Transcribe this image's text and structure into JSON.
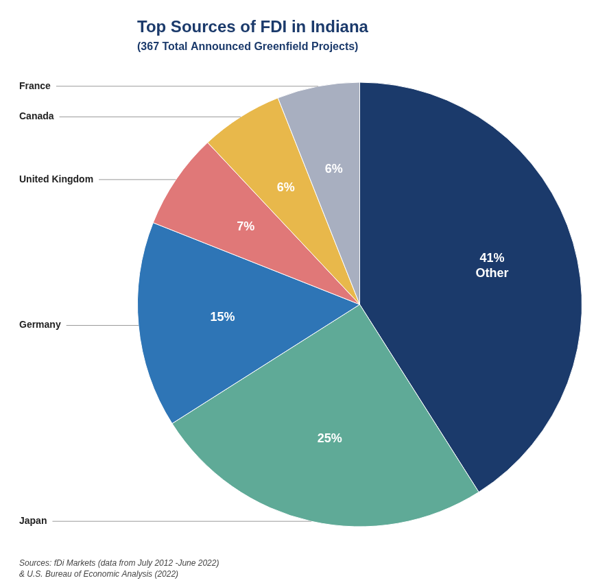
{
  "chart_data": {
    "type": "pie",
    "title": "Top Sources of FDI in Indiana",
    "subtitle": "(367 Total Announced Greenfield Projects)",
    "annotations": [
      "Sources: fDi Markets (data from July 2012 -June 2022)\n& U.S. Bureau of Economic Analysis (2022)"
    ],
    "categories": [
      "Other",
      "Japan",
      "Germany",
      "United Kingdom",
      "Canada",
      "France"
    ],
    "values": [
      41,
      25,
      15,
      7,
      6,
      6
    ],
    "value_labels": [
      "41%\nOther",
      "25%",
      "15%",
      "7%",
      "6%",
      "6%"
    ],
    "colors": [
      "#1b3a6b",
      "#5faa97",
      "#2e75b6",
      "#e07878",
      "#e8b84b",
      "#a8afc0"
    ],
    "data_labels": true
  }
}
